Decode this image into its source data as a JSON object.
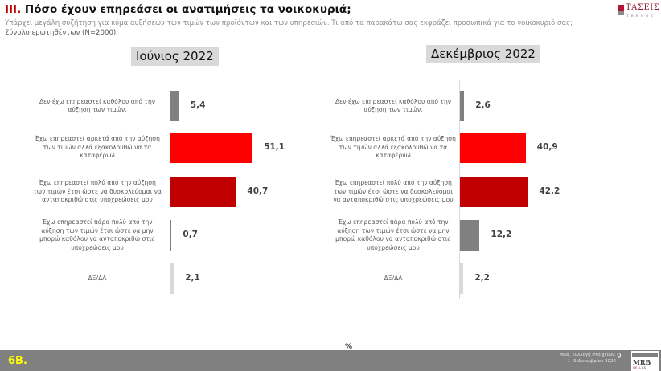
{
  "header": {
    "title_number": "III.",
    "title_text": " Πόσο έχουν επηρεάσει οι ανατιμήσεις τα νοικοκυριά;",
    "subtitle": "Υπάρχει μεγάλη συζήτηση για κύμα αυξήσεων των τιμών των προϊόντων και των υπηρεσιών. Τι από τα παρακάτω σας εκφράζει  προσωπικά για το νοικοκυριό σας;",
    "base": "Σύνολο ερωτηθέντων (N=2000)",
    "logo_word": "ΤΑΣΕΙΣ",
    "logo_sub": "TRENDS"
  },
  "colors": {
    "accent_red": "#c00000",
    "bright_red": "#ff0000",
    "dark_red": "#c00000",
    "gray": "#808080",
    "light_gray": "#d9d9d9",
    "footer_bg": "#808080",
    "footer_label": "#ffff00"
  },
  "chart_data": [
    {
      "type": "bar",
      "orientation": "horizontal",
      "title": "Ιούνιος 2022",
      "categories": [
        "Δεν έχω επηρεαστεί καθόλου από την αύξηση των τιμών.",
        "Έχω επηρεαστεί αρκετά από την αύξηση των τιμών αλλά εξακολουθώ να τα καταφέρνω",
        "Έχω επηρεαστεί πολύ από την αύξηση των τιμών έτσι ώστε να δυσκολεύομαι να ανταποκριθώ στις υποχρεώσεις μου",
        "Έχω επηρεαστεί πάρα πολύ από την αύξηση των τιμών έτσι ώστε να μην μπορώ καθόλου να ανταποκριθώ στις υποχρεώσεις μου",
        "ΔΞ/ΔΑ"
      ],
      "values": [
        5.4,
        51.1,
        40.7,
        0.7,
        2.1
      ],
      "value_labels": [
        "5,4",
        "51,1",
        "40,7",
        "0,7",
        "2,1"
      ],
      "bar_colors": [
        "#808080",
        "#ff0000",
        "#c00000",
        "#808080",
        "#d9d9d9"
      ],
      "xlabel": "%",
      "xlim": [
        0,
        60
      ],
      "grid": false,
      "legend": "none"
    },
    {
      "type": "bar",
      "orientation": "horizontal",
      "title": "Δεκέμβριος 2022",
      "categories": [
        "Δεν έχω επηρεαστεί καθόλου από την αύξηση των τιμών.",
        "Έχω επηρεαστεί αρκετά από την αύξηση των τιμών αλλά εξακολουθώ να τα καταφέρνω",
        "Έχω επηρεαστεί πολύ από την αύξηση των τιμών έτσι ώστε να δυσκολεύομαι να ανταποκριθώ στις υποχρεώσεις μου",
        "Έχω επηρεαστεί πάρα πολύ από την αύξηση των τιμών έτσι ώστε να μην μπορώ καθόλου να ανταποκριθώ στις υποχρεώσεις μου",
        "ΔΞ/ΔΑ"
      ],
      "values": [
        2.6,
        40.9,
        42.2,
        12.2,
        2.2
      ],
      "value_labels": [
        "2,6",
        "40,9",
        "42,2",
        "12,2",
        "2,2"
      ],
      "bar_colors": [
        "#808080",
        "#ff0000",
        "#c00000",
        "#808080",
        "#d9d9d9"
      ],
      "xlabel": "%",
      "xlim": [
        0,
        60
      ],
      "grid": false,
      "legend": "none"
    }
  ],
  "footer": {
    "unit": "%",
    "slide_label": "6B.",
    "source_line1": "MRB, Συλλογή στοιχείων:",
    "source_line2": "1 -9 Δεκεμβρίου 2022",
    "page_number": "9",
    "mrb_logo": "MRB",
    "mrb_sub": "HELLAS"
  }
}
